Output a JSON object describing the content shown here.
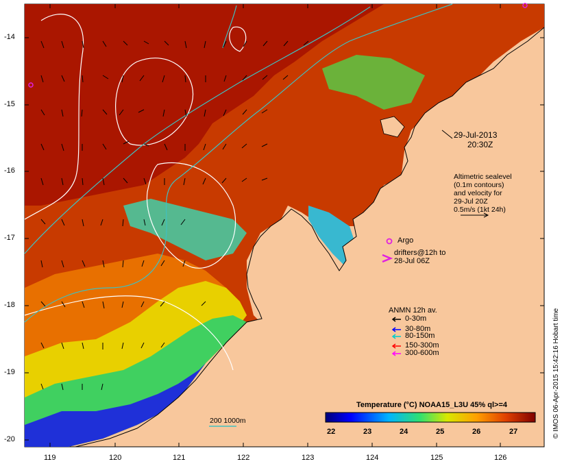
{
  "map": {
    "lat_ticks": [
      "-14",
      "-15",
      "-16",
      "-17",
      "-18",
      "-19",
      "-20"
    ],
    "lon_ticks": [
      "119",
      "120",
      "121",
      "122",
      "123",
      "124",
      "125",
      "126"
    ],
    "colors": {
      "land": "#f8c79c",
      "ocean_warm": "#b21a00",
      "coast": "#000000",
      "contour": "#ffffff",
      "isobath": "#40c0c0"
    }
  },
  "date": {
    "line1": "29-Jul-2013",
    "line2": "20:30Z"
  },
  "altimetry": {
    "lines": [
      "Altimetric sealevel",
      "(0.1m contours)",
      "and velocity for",
      "29-Jul 20Z",
      "0.5m/s (1kt 24h)"
    ]
  },
  "argo": {
    "label": "Argo",
    "color": "#e020e0"
  },
  "drifters": {
    "lines": [
      "drifters@12h to",
      "28-Jul 06Z"
    ],
    "color": "#e020e0"
  },
  "anmn": {
    "title": "ANMN 12h av.",
    "items": [
      {
        "label": "0-30m",
        "color": "#000000"
      },
      {
        "label": "30-80m",
        "color": "#0000ff"
      },
      {
        "label": "80-150m",
        "color": "#00cccc"
      },
      {
        "label": "150-300m",
        "color": "#ff0000"
      },
      {
        "label": "300-600m",
        "color": "#ff00ff"
      }
    ]
  },
  "isobath_label": "200  1000m",
  "colorbar": {
    "title": "Temperature (°C) NOAA15_L3U 45% ql>=4",
    "ticks": [
      "22",
      "23",
      "24",
      "25",
      "26",
      "27"
    ],
    "range": [
      21.5,
      27.5
    ]
  },
  "credit": "© IMOS 06-Apr-2015 15:42:16 Hobart time"
}
